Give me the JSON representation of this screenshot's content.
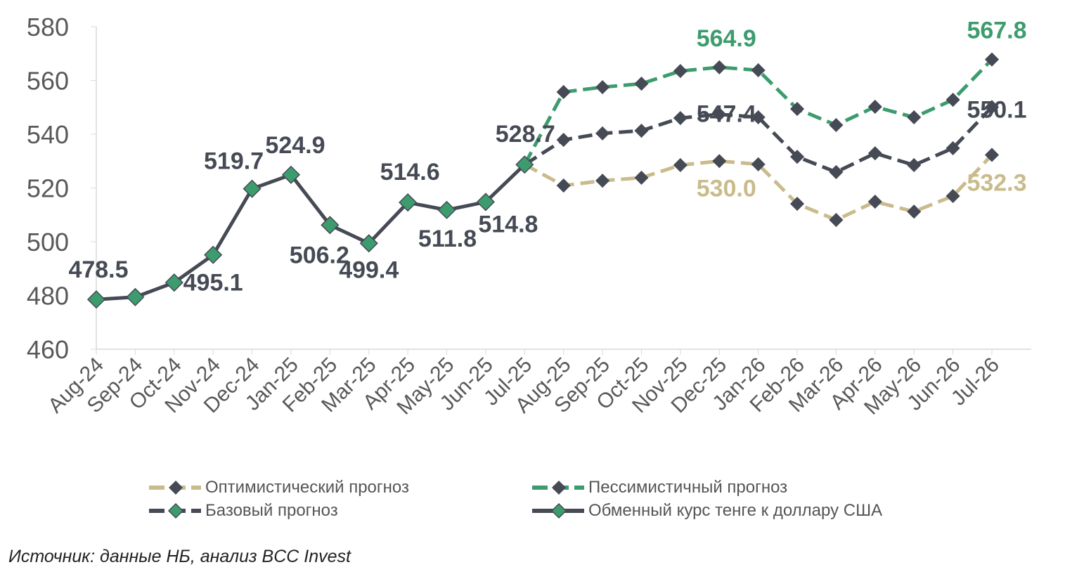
{
  "chart_data": {
    "type": "line",
    "title": "",
    "xlabel": "",
    "ylabel": "",
    "ylim": [
      460,
      580
    ],
    "yticks": [
      460,
      480,
      500,
      520,
      540,
      560,
      580
    ],
    "grid": false,
    "legend_placement": "bottom",
    "categories": [
      "Aug-24",
      "Sep-24",
      "Oct-24",
      "Nov-24",
      "Dec-24",
      "Jan-25",
      "Feb-25",
      "Mar-25",
      "Apr-25",
      "May-25",
      "Jun-25",
      "Jul-25",
      "Aug-25",
      "Sep-25",
      "Oct-25",
      "Nov-25",
      "Dec-25",
      "Jan-26",
      "Feb-26",
      "Mar-26",
      "Apr-26",
      "May-26",
      "Jun-26",
      "Jul-26"
    ],
    "series": [
      {
        "name": "Оптимистический прогноз",
        "key": "optimistic",
        "color": "#c9bb8c",
        "marker_color": "#454a55",
        "label_color": "#c9bb8c",
        "dashed": true,
        "values": [
          null,
          null,
          null,
          null,
          null,
          null,
          null,
          null,
          null,
          null,
          null,
          528.7,
          520.9,
          522.7,
          523.8,
          528.5,
          530.0,
          528.8,
          514.1,
          508.1,
          514.9,
          511.2,
          517.0,
          532.3
        ]
      },
      {
        "name": "Пессимистичный прогноз",
        "key": "pessimistic",
        "color": "#3d9c6e",
        "marker_color": "#454a55",
        "label_color": "#3d9c6e",
        "dashed": true,
        "values": [
          null,
          null,
          null,
          null,
          null,
          null,
          null,
          null,
          null,
          null,
          null,
          528.7,
          555.7,
          557.5,
          558.8,
          563.5,
          564.9,
          563.8,
          549.4,
          543.4,
          550.2,
          546.3,
          552.8,
          567.8
        ]
      },
      {
        "name": "Базовый прогноз",
        "key": "base",
        "color": "#454a55",
        "marker_color": "#454a55",
        "label_color": "#454a55",
        "dashed": true,
        "values": [
          null,
          null,
          null,
          null,
          null,
          null,
          null,
          null,
          null,
          null,
          null,
          528.7,
          537.9,
          540.3,
          541.3,
          546.0,
          547.4,
          546.3,
          531.6,
          525.9,
          532.9,
          528.5,
          534.8,
          550.1
        ]
      },
      {
        "name": "Обменный курс тенге к доллару США",
        "key": "actual",
        "color": "#454a55",
        "marker_color": "#3d9c6e",
        "label_color": "#454a55",
        "dashed": false,
        "values": [
          478.5,
          479.4,
          484.8,
          495.1,
          519.7,
          524.9,
          506.2,
          499.4,
          514.6,
          511.8,
          514.8,
          528.7,
          null,
          null,
          null,
          null,
          null,
          null,
          null,
          null,
          null,
          null,
          null,
          null
        ]
      }
    ],
    "data_labels": [
      {
        "series": "actual",
        "index": 0,
        "text": "478.5"
      },
      {
        "series": "actual",
        "index": 3,
        "text": "495.1"
      },
      {
        "series": "actual",
        "index": 4,
        "text": "519.7"
      },
      {
        "series": "actual",
        "index": 5,
        "text": "524.9"
      },
      {
        "series": "actual",
        "index": 6,
        "text": "506.2"
      },
      {
        "series": "actual",
        "index": 7,
        "text": "499.4"
      },
      {
        "series": "actual",
        "index": 8,
        "text": "514.6"
      },
      {
        "series": "actual",
        "index": 9,
        "text": "511.8"
      },
      {
        "series": "actual",
        "index": 10,
        "text": "514.8"
      },
      {
        "series": "actual",
        "index": 11,
        "text": "528.7"
      },
      {
        "series": "pessimistic",
        "index": 16,
        "text": "564.9"
      },
      {
        "series": "base",
        "index": 16,
        "text": "547.4"
      },
      {
        "series": "optimistic",
        "index": 16,
        "text": "530.0"
      },
      {
        "series": "pessimistic",
        "index": 23,
        "text": "567.8"
      },
      {
        "series": "base",
        "index": 23,
        "text": "550.1"
      },
      {
        "series": "optimistic",
        "index": 23,
        "text": "532.3"
      }
    ]
  },
  "source": "Источник: данные НБ, анализ BCC Invest"
}
